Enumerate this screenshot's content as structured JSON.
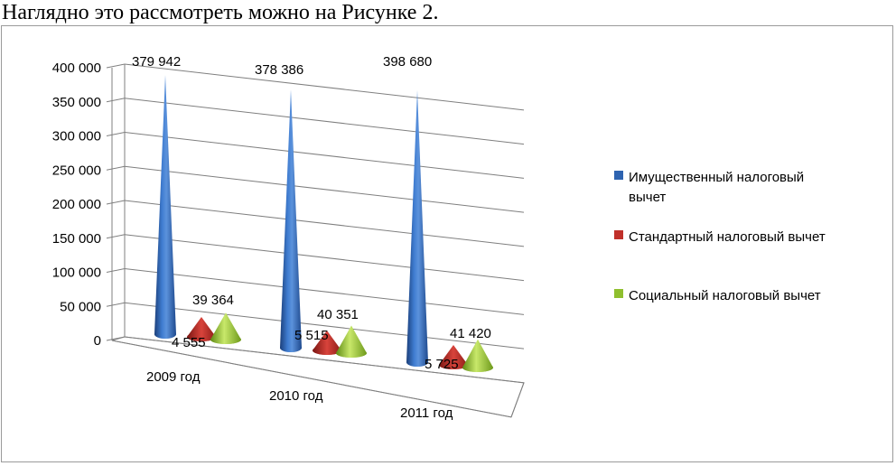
{
  "caption": "Наглядно это рассмотреть можно на Рисунке 2.",
  "chart_data": {
    "type": "bar",
    "style": "3d-cone",
    "categories": [
      "2009 год",
      "2010 год",
      "2011 год"
    ],
    "series": [
      {
        "name": "Имущественный налоговый вычет",
        "values": [
          379942,
          378386,
          398680
        ],
        "labels": [
          "379 942",
          "378 386",
          "398 680"
        ],
        "color": "#2e63b0"
      },
      {
        "name": "Стандартный налоговый вычет",
        "values": [
          4555,
          5515,
          5725
        ],
        "labels": [
          "4 555",
          "5 515",
          "5 725"
        ],
        "color": "#c0302a"
      },
      {
        "name": "Социальный налоговый вычет",
        "values": [
          39364,
          40351,
          41420
        ],
        "labels": [
          "39 364",
          "40 351",
          "41 420"
        ],
        "color": "#8fbf2e"
      }
    ],
    "y_ticks": [
      "0",
      "50 000",
      "100 000",
      "150 000",
      "200 000",
      "250 000",
      "300 000",
      "350 000",
      "400 000"
    ],
    "ylim": [
      0,
      400000
    ],
    "grid": true,
    "legend_position": "right",
    "legend_lines": [
      [
        "Имущественный налоговый",
        "вычет"
      ],
      [
        "Стандартный налоговый вычет"
      ],
      [
        "Социальный налоговый вычет"
      ]
    ]
  }
}
